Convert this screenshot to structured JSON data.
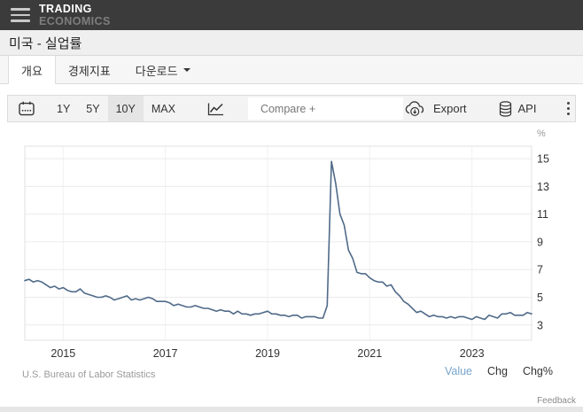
{
  "brand": {
    "line1": "TRADING",
    "line2": "ECONOMICS"
  },
  "page": {
    "title": "미국 - 실업률"
  },
  "tabs": [
    {
      "label": "개요",
      "active": true
    },
    {
      "label": "경제지표",
      "active": false
    },
    {
      "label": "다운로드",
      "active": false,
      "has_dropdown": true
    }
  ],
  "toolbar": {
    "ranges": [
      {
        "label": "1Y",
        "selected": false
      },
      {
        "label": "5Y",
        "selected": false
      },
      {
        "label": "10Y",
        "selected": true
      },
      {
        "label": "MAX",
        "selected": false
      }
    ],
    "compare_placeholder": "Compare +",
    "export_label": "Export",
    "api_label": "API"
  },
  "chart_data": {
    "type": "line",
    "unit": "%",
    "x_start": "2014-04",
    "frequency": "monthly",
    "series": [
      {
        "name": "미국 실업률",
        "color": "#4f6a88",
        "values": [
          6.2,
          6.3,
          6.1,
          6.2,
          6.1,
          5.9,
          5.7,
          5.8,
          5.6,
          5.7,
          5.5,
          5.4,
          5.4,
          5.6,
          5.3,
          5.2,
          5.1,
          5.0,
          5.0,
          5.1,
          5.0,
          4.8,
          4.9,
          5.0,
          5.1,
          4.8,
          4.9,
          4.8,
          4.9,
          5.0,
          4.9,
          4.7,
          4.7,
          4.7,
          4.6,
          4.4,
          4.5,
          4.4,
          4.3,
          4.3,
          4.4,
          4.3,
          4.2,
          4.2,
          4.1,
          4.0,
          4.1,
          4.0,
          4.0,
          3.8,
          4.0,
          3.8,
          3.8,
          3.7,
          3.8,
          3.8,
          3.9,
          4.0,
          3.8,
          3.8,
          3.7,
          3.7,
          3.6,
          3.7,
          3.7,
          3.5,
          3.6,
          3.6,
          3.6,
          3.5,
          3.5,
          4.4,
          14.8,
          13.2,
          11.0,
          10.2,
          8.4,
          7.8,
          6.8,
          6.7,
          6.7,
          6.4,
          6.2,
          6.1,
          6.1,
          5.8,
          5.9,
          5.4,
          5.1,
          4.7,
          4.5,
          4.2,
          3.9,
          4.0,
          3.8,
          3.6,
          3.7,
          3.6,
          3.6,
          3.5,
          3.6,
          3.5,
          3.6,
          3.6,
          3.5,
          3.4,
          3.6,
          3.5,
          3.4,
          3.7,
          3.6,
          3.5,
          3.8,
          3.8,
          3.9,
          3.7,
          3.7,
          3.7,
          3.9,
          3.8
        ]
      }
    ],
    "x_tick_labels": [
      "2015",
      "2017",
      "2019",
      "2021",
      "2023"
    ],
    "x_tick_month_indices": [
      9,
      33,
      57,
      81,
      105
    ],
    "y_ticks": [
      3,
      5,
      7,
      9,
      11,
      13,
      15
    ],
    "ylim": [
      1.9,
      15.9
    ],
    "grid": true,
    "legend": false
  },
  "footer": {
    "source": "U.S. Bureau of Labor Statistics",
    "links": [
      {
        "label": "Value",
        "active": true
      },
      {
        "label": "Chg",
        "active": false
      },
      {
        "label": "Chg%",
        "active": false
      }
    ],
    "feedback": "Feedback"
  },
  "colors": {
    "line": "#4f6a88",
    "value_link": "#79a5cc",
    "header_bg": "#3b3b3b",
    "toolbar_bg": "#f3f3f3",
    "selected_range_bg": "#e5e5e5"
  }
}
